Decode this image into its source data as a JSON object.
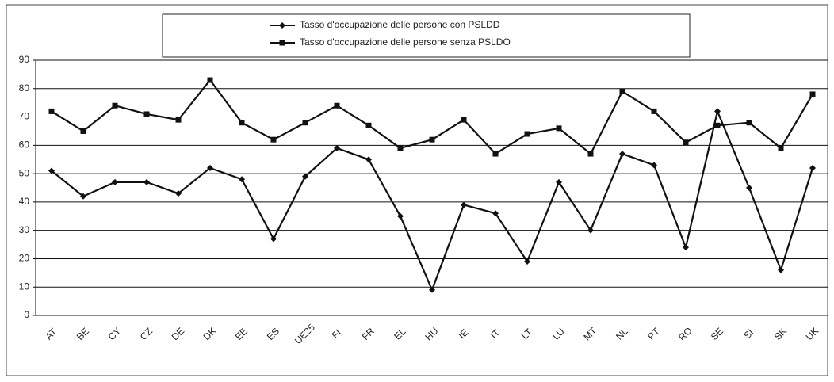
{
  "chart_data": {
    "type": "line",
    "categories": [
      "AT",
      "BE",
      "CY",
      "CZ",
      "DE",
      "DK",
      "EE",
      "ES",
      "UE25",
      "FI",
      "FR",
      "EL",
      "HU",
      "IE",
      "IT",
      "LT",
      "LU",
      "MT",
      "NL",
      "PT",
      "RO",
      "SE",
      "SI",
      "SK",
      "UK"
    ],
    "series": [
      {
        "name": "Tasso d'occupazione delle persone con PSLDD",
        "color": "#111111",
        "marker": "diamond",
        "values": [
          51,
          42,
          47,
          47,
          43,
          52,
          48,
          27,
          49,
          59,
          55,
          35,
          9,
          39,
          36,
          19,
          47,
          30,
          57,
          53,
          24,
          72,
          45,
          16,
          52
        ]
      },
      {
        "name": "Tasso d'occupazione delle persone senza PSLDO",
        "color": "#111111",
        "marker": "square",
        "values": [
          72,
          65,
          74,
          71,
          69,
          83,
          68,
          62,
          68,
          74,
          67,
          59,
          62,
          69,
          57,
          64,
          66,
          57,
          79,
          72,
          61,
          67,
          68,
          59,
          78
        ]
      }
    ],
    "ylim": [
      0,
      90
    ],
    "yticks": [
      0,
      10,
      20,
      30,
      40,
      50,
      60,
      70,
      80,
      90
    ],
    "grid": true,
    "legend": "top"
  }
}
